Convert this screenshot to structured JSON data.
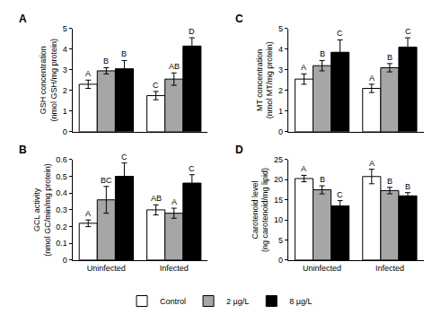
{
  "chart_data": [
    {
      "type": "bar",
      "title": "A",
      "ylabel": "GSH concentration\n(nmol GSH/mg protein)",
      "categories": [
        "Uninfected",
        "Infected"
      ],
      "series": [
        {
          "name": "Control",
          "color": "#ffffff",
          "values": [
            2.3,
            1.75
          ],
          "errors": [
            0.2,
            0.2
          ],
          "annotations": [
            "A",
            "C"
          ]
        },
        {
          "name": "2 µg/L",
          "color": "#a6a6a6",
          "values": [
            2.95,
            2.55
          ],
          "errors": [
            0.15,
            0.3
          ],
          "annotations": [
            "B",
            "AB"
          ]
        },
        {
          "name": "8 µg/L",
          "color": "#000000",
          "values": [
            3.05,
            4.15
          ],
          "errors": [
            0.4,
            0.4
          ],
          "annotations": [
            "B",
            "D"
          ]
        }
      ],
      "ylim": [
        0,
        5
      ],
      "yticks": [
        0,
        1,
        2,
        3,
        4,
        5
      ],
      "grid": false,
      "tick_labels": "y",
      "legend": "bottom"
    },
    {
      "type": "bar",
      "title": "B",
      "ylabel": "GCL activity\n(nmol GC/min/mg protein)",
      "categories": [
        "Uninfected",
        "Infected"
      ],
      "series": [
        {
          "name": "Control",
          "color": "#ffffff",
          "values": [
            0.22,
            0.3
          ],
          "errors": [
            0.02,
            0.03
          ],
          "annotations": [
            "A",
            "AB"
          ]
        },
        {
          "name": "2 µg/L",
          "color": "#a6a6a6",
          "values": [
            0.36,
            0.28
          ],
          "errors": [
            0.08,
            0.03
          ],
          "annotations": [
            "BC",
            "A"
          ]
        },
        {
          "name": "8 µg/L",
          "color": "#000000",
          "values": [
            0.5,
            0.46
          ],
          "errors": [
            0.08,
            0.05
          ],
          "annotations": [
            "C",
            "C"
          ]
        }
      ],
      "ylim": [
        0,
        0.6
      ],
      "yticks": [
        0,
        0.1,
        0.2,
        0.3,
        0.4,
        0.5,
        0.6
      ],
      "grid": false
    },
    {
      "type": "bar",
      "title": "C",
      "ylabel": "MT concentration\n(nmol MT/mg protein)",
      "categories": [
        "Uninfected",
        "Infected"
      ],
      "series": [
        {
          "name": "Control",
          "color": "#ffffff",
          "values": [
            2.55,
            2.1
          ],
          "errors": [
            0.25,
            0.2
          ],
          "annotations": [
            "A",
            "A"
          ]
        },
        {
          "name": "2 µg/L",
          "color": "#a6a6a6",
          "values": [
            3.2,
            3.1
          ],
          "errors": [
            0.25,
            0.2
          ],
          "annotations": [
            "B",
            "B"
          ]
        },
        {
          "name": "8 µg/L",
          "color": "#000000",
          "values": [
            3.85,
            4.1
          ],
          "errors": [
            0.6,
            0.45
          ],
          "annotations": [
            "C",
            "C"
          ]
        }
      ],
      "ylim": [
        0,
        5
      ],
      "yticks": [
        0,
        1,
        2,
        3,
        4,
        5
      ],
      "grid": false,
      "tick_labels": "y"
    },
    {
      "type": "bar",
      "title": "D",
      "ylabel": "Carotenoid level\n(ng carotenoid/mg lipid)",
      "categories": [
        "Uninfected",
        "Infected"
      ],
      "series": [
        {
          "name": "Control",
          "color": "#ffffff",
          "values": [
            20.3,
            20.8
          ],
          "errors": [
            0.8,
            1.8
          ],
          "annotations": [
            "A",
            "A"
          ]
        },
        {
          "name": "2 µg/L",
          "color": "#a6a6a6",
          "values": [
            17.5,
            17.3
          ],
          "errors": [
            1.0,
            0.8
          ],
          "annotations": [
            "B",
            "B"
          ]
        },
        {
          "name": "8 µg/L",
          "color": "#000000",
          "values": [
            13.5,
            16.0
          ],
          "errors": [
            1.3,
            0.8
          ],
          "annotations": [
            "C",
            "B"
          ]
        }
      ],
      "ylim": [
        0,
        25
      ],
      "yticks": [
        0,
        5,
        10,
        15,
        20,
        25
      ],
      "grid": false
    }
  ]
}
